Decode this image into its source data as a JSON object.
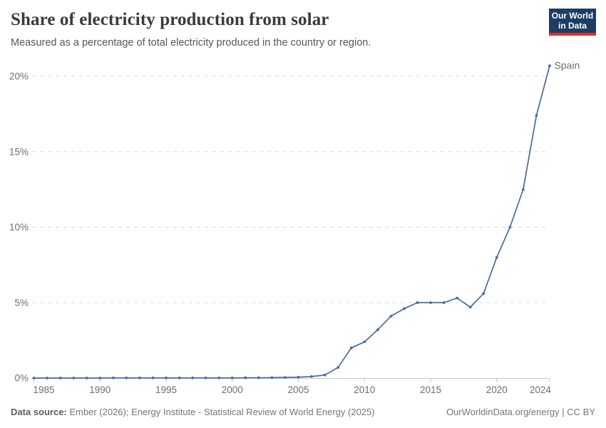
{
  "header": {
    "title": "Share of electricity production from solar",
    "subtitle": "Measured as a percentage of total electricity produced in the country or region."
  },
  "logo": {
    "line1": "Our World",
    "line2": "in Data",
    "bg_color": "#1d3d63",
    "accent_color": "#d8352b"
  },
  "footer": {
    "source_label": "Data source:",
    "source_text": "Ember (2026); Energy Institute - Statistical Review of World Energy (2025)",
    "right_text": "OurWorldinData.org/energy | CC BY"
  },
  "chart_data": {
    "type": "line",
    "title": "Share of electricity production from solar",
    "subtitle": "Measured as a percentage of total electricity produced in the country or region.",
    "xlabel": "",
    "ylabel": "",
    "ylim": [
      0,
      20.8
    ],
    "grid": "horizontal dashed",
    "legend_position": "end-of-line label",
    "line_color": "#4c6a9c",
    "gridline_color": "#d9d9d9",
    "axis_color": "#c8c8c8",
    "tick_label_color": "#6e6e6e",
    "yticks": [
      {
        "value": 0,
        "label": "0%"
      },
      {
        "value": 5,
        "label": "5%"
      },
      {
        "value": 10,
        "label": "10%"
      },
      {
        "value": 15,
        "label": "15%"
      },
      {
        "value": 20,
        "label": "20%"
      }
    ],
    "xticks": [
      1985,
      1990,
      1995,
      2000,
      2005,
      2010,
      2015,
      2020,
      2024
    ],
    "series": [
      {
        "name": "Spain",
        "color": "#4c6a9c",
        "x": [
          1985,
          1986,
          1987,
          1988,
          1989,
          1990,
          1991,
          1992,
          1993,
          1994,
          1995,
          1996,
          1997,
          1998,
          1999,
          2000,
          2001,
          2002,
          2003,
          2004,
          2005,
          2006,
          2007,
          2008,
          2009,
          2010,
          2011,
          2012,
          2013,
          2014,
          2015,
          2016,
          2017,
          2018,
          2019,
          2020,
          2021,
          2022,
          2023,
          2024
        ],
        "values": [
          0,
          0,
          0,
          0,
          0,
          0,
          0.01,
          0.01,
          0.01,
          0.01,
          0.01,
          0.01,
          0.01,
          0.01,
          0.01,
          0.01,
          0.02,
          0.02,
          0.03,
          0.04,
          0.06,
          0.1,
          0.2,
          0.7,
          2.0,
          2.4,
          3.2,
          4.1,
          4.6,
          5.0,
          5.0,
          5.0,
          5.3,
          4.7,
          5.6,
          8.0,
          10.0,
          12.5,
          17.4,
          20.7
        ]
      }
    ]
  }
}
